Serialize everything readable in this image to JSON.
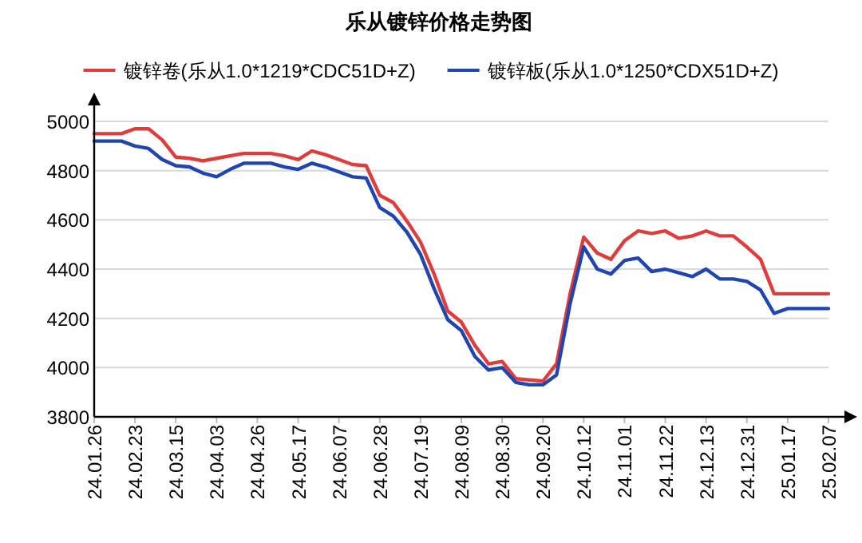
{
  "chart_data": {
    "type": "line",
    "title": "乐从镀锌价格走势图",
    "categories": [
      "24.01.26",
      null,
      null,
      "24.02.23",
      null,
      null,
      "24.03.15",
      null,
      null,
      "24.04.03",
      null,
      null,
      "24.04.26",
      null,
      null,
      "24.05.17",
      null,
      null,
      "24.06.07",
      null,
      null,
      "24.06.28",
      null,
      null,
      "24.07.19",
      null,
      null,
      "24.08.09",
      null,
      null,
      "24.08.30",
      null,
      null,
      "24.09.20",
      null,
      null,
      "24.10.12",
      null,
      null,
      "24.11.01",
      null,
      null,
      "24.11.22",
      null,
      null,
      "24.12.13",
      null,
      null,
      "24.12.31",
      null,
      null,
      "25.01.17",
      null,
      null,
      "25.02.07"
    ],
    "series": [
      {
        "name": "镀锌卷(乐从1.0*1219*CDC51D+Z)",
        "color": "#e03c3c",
        "values": [
          4950,
          4950,
          4950,
          4970,
          4970,
          4925,
          4855,
          4850,
          4840,
          4850,
          4860,
          4870,
          4870,
          4870,
          4860,
          4845,
          4880,
          4865,
          4845,
          4825,
          4820,
          4700,
          4670,
          4595,
          4510,
          4380,
          4230,
          4185,
          4090,
          4015,
          4025,
          3955,
          3950,
          3945,
          4015,
          4300,
          4530,
          4465,
          4440,
          4515,
          4555,
          4545,
          4555,
          4525,
          4535,
          4555,
          4535,
          4535,
          4490,
          4440,
          4300,
          4300,
          4300,
          4300,
          4300
        ]
      },
      {
        "name": "镀锌板(乐从1.0*1250*CDX51D+Z)",
        "color": "#1f45b0",
        "values": [
          4920,
          4920,
          4920,
          4900,
          4890,
          4845,
          4820,
          4815,
          4790,
          4775,
          4805,
          4830,
          4830,
          4830,
          4815,
          4805,
          4830,
          4815,
          4795,
          4775,
          4770,
          4650,
          4615,
          4550,
          4460,
          4320,
          4195,
          4150,
          4045,
          3990,
          4000,
          3940,
          3930,
          3930,
          3970,
          4260,
          4490,
          4400,
          4380,
          4435,
          4445,
          4390,
          4400,
          4385,
          4370,
          4400,
          4360,
          4360,
          4350,
          4315,
          4220,
          4240,
          4240,
          4240,
          4240
        ]
      }
    ],
    "ylim": [
      3800,
      5000
    ],
    "yticks": [
      3800,
      4000,
      4200,
      4400,
      4600,
      4800,
      5000
    ],
    "grid": "y",
    "legend": "top",
    "marker": "none",
    "line_style": "solid"
  }
}
